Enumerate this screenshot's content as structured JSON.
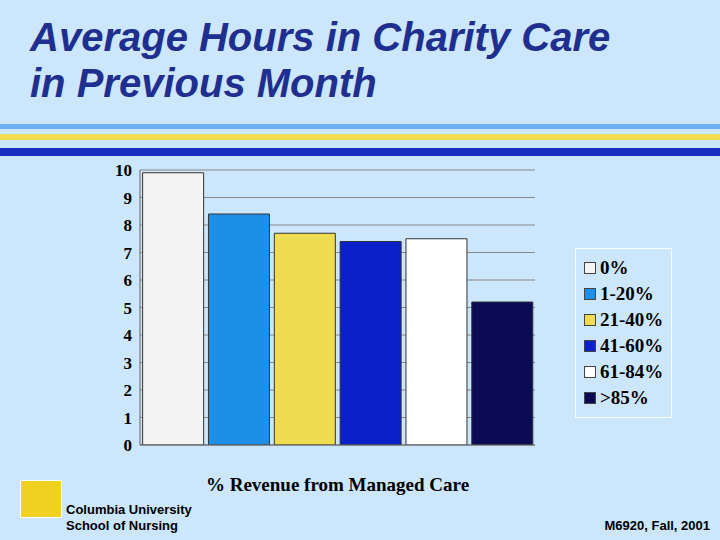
{
  "chart_data": {
    "type": "bar",
    "title": "Average Hours in Charity Care in Previous Month",
    "x_label": "% Revenue from Managed Care",
    "categories": [
      "0%",
      "1-20%",
      "21-40%",
      "41-60%",
      "61-84%",
      ">85%"
    ],
    "values": [
      9.9,
      8.4,
      7.7,
      7.4,
      7.5,
      5.2
    ],
    "colors": [
      "#f4f4f4",
      "#1e8fe6",
      "#f0dc50",
      "#0a20c8",
      "#ffffff",
      "#0a0a55"
    ],
    "ylim": [
      0,
      10
    ],
    "yticks": [
      0,
      1,
      2,
      3,
      4,
      5,
      6,
      7,
      8,
      9,
      10
    ],
    "grid": true,
    "legend": "right",
    "tick_labels": "y",
    "annotations": [
      "Columbia University School of Nursing",
      "M6920, Fall, 2001"
    ]
  }
}
